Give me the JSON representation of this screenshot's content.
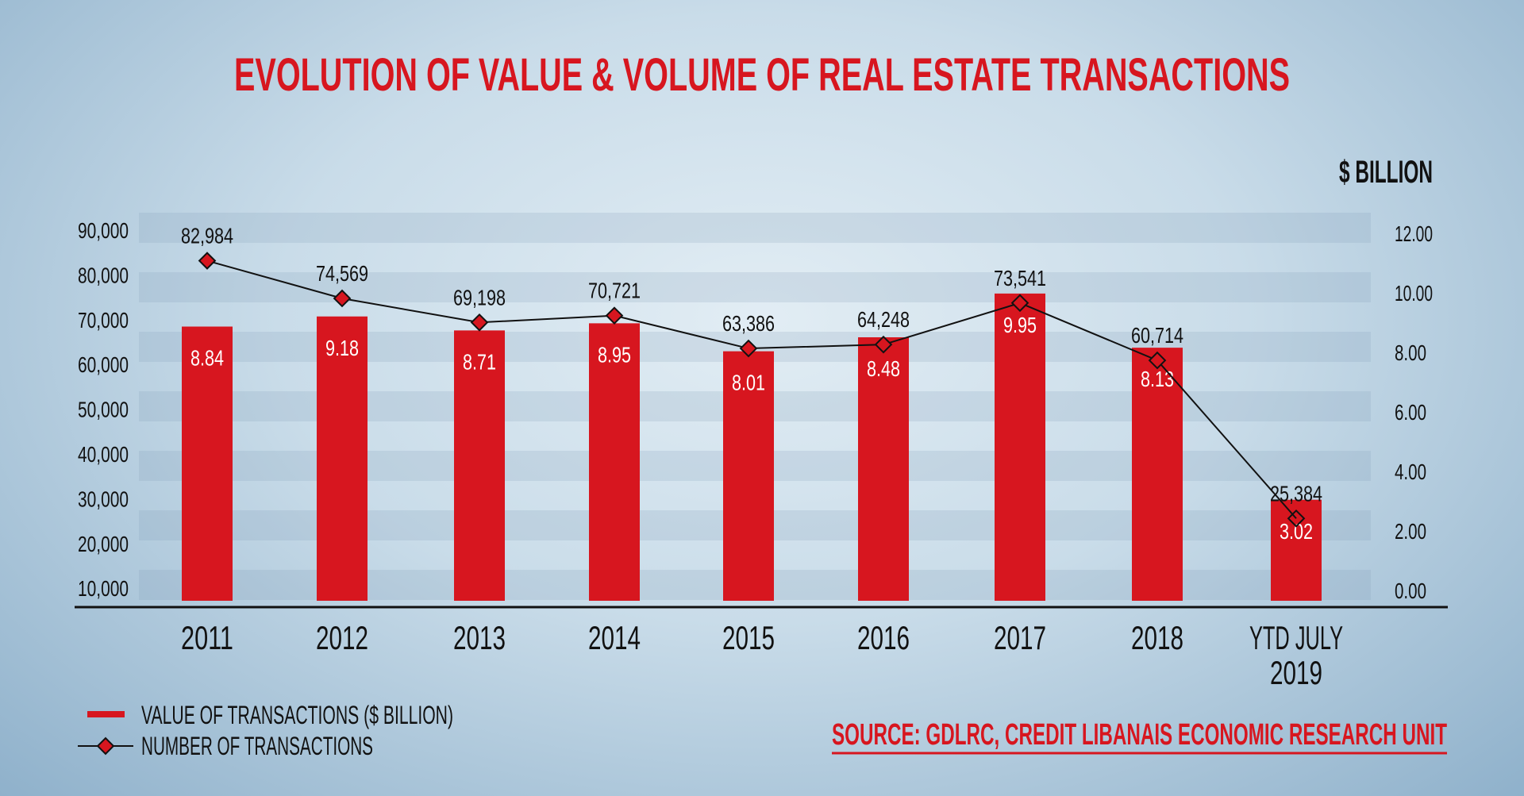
{
  "chart_data": {
    "type": "bar+line",
    "title": "EVOLUTION OF VALUE & VOLUME OF REAL ESTATE TRANSACTIONS",
    "right_axis_label": "$ BILLION",
    "categories": [
      "2011",
      "2012",
      "2013",
      "2014",
      "2015",
      "2016",
      "2017",
      "2018",
      "YTD JULY 2019"
    ],
    "series": [
      {
        "name": "VALUE OF TRANSACTIONS ($ BILLION)",
        "type": "bar",
        "axis": "right",
        "color": "#d7161f",
        "values": [
          8.84,
          9.18,
          8.71,
          8.95,
          8.01,
          8.48,
          9.95,
          8.13,
          3.02
        ],
        "labels": [
          "8.84",
          "9.18",
          "8.71",
          "8.95",
          "8.01",
          "8.48",
          "9.95",
          "8.13",
          "3.02"
        ]
      },
      {
        "name": "NUMBER OF TRANSACTIONS",
        "type": "line",
        "axis": "left",
        "color": "#111111",
        "marker_color": "#d7161f",
        "values": [
          82984,
          74569,
          69198,
          70721,
          63386,
          64248,
          73541,
          60714,
          25384
        ],
        "labels": [
          "82,984",
          "74,569",
          "69,198",
          "70,721",
          "63,386",
          "64,248",
          "73,541",
          "60,714",
          "25,384"
        ]
      }
    ],
    "left_axis": {
      "ticks": [
        "90,000",
        "80,000",
        "70,000",
        "60,000",
        "50,000",
        "40,000",
        "30,000",
        "20,000",
        "10,000"
      ],
      "range": [
        10000,
        90000
      ]
    },
    "right_axis": {
      "ticks": [
        "12.00",
        "10.00",
        "8.00",
        "6.00",
        "4.00",
        "2.00",
        "0.00"
      ],
      "range": [
        0,
        12
      ]
    },
    "grid": "horizontal bands",
    "legend_position": "bottom-left",
    "source": "SOURCE: GDLRC, CREDIT LIBANAIS ECONOMIC RESEARCH UNIT"
  },
  "colors": {
    "title": "#d7161f",
    "bar": "#d7161f",
    "text": "#111111"
  }
}
